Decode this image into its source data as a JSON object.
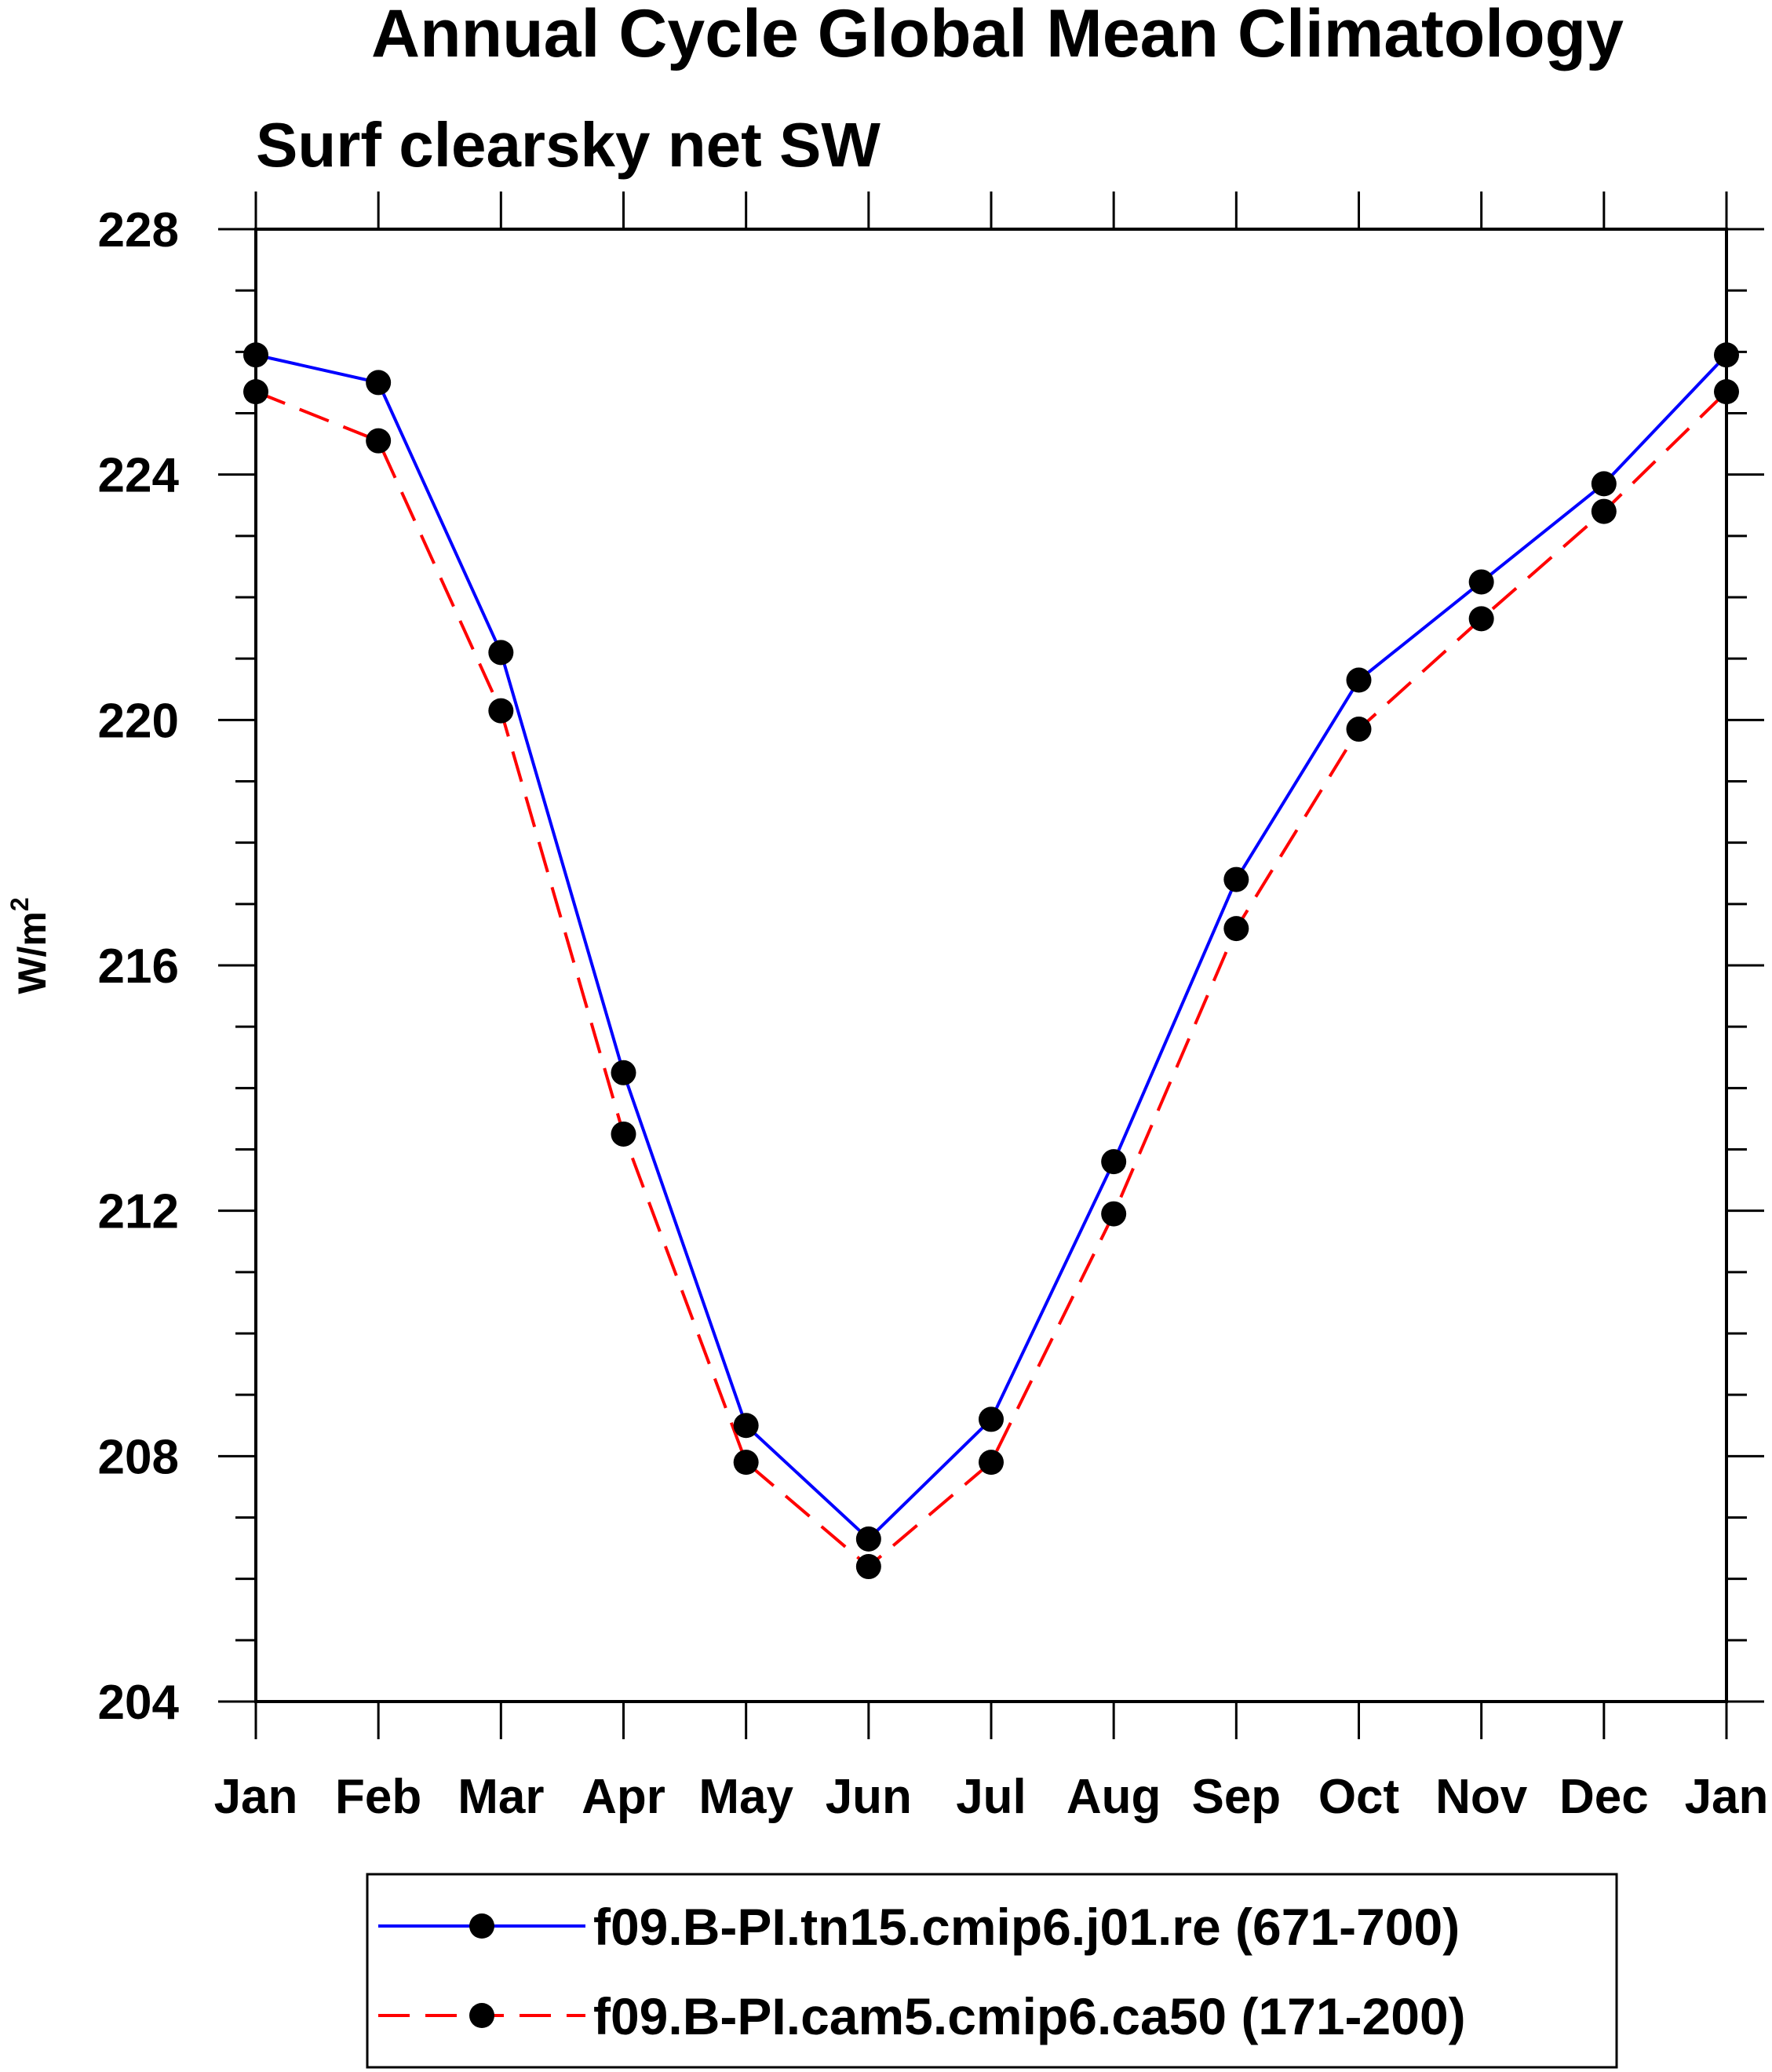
{
  "chart_data": {
    "type": "line",
    "title": "Annual Cycle Global Mean Climatology",
    "subtitle": "Surf clearsky net SW",
    "ylabel": "W/m",
    "ylabel_superscript": "2",
    "categories": [
      "Jan",
      "Feb",
      "Mar",
      "Apr",
      "May",
      "Jun",
      "Jul",
      "Aug",
      "Sep",
      "Oct",
      "Nov",
      "Dec",
      "Jan"
    ],
    "ylim": [
      204,
      228
    ],
    "yticks": [
      204,
      208,
      212,
      216,
      220,
      224,
      228
    ],
    "y_minor_step": 1,
    "grid": false,
    "legend_position": "bottom",
    "series": [
      {
        "name": "f09.B-PI.tn15.cmip6.j01.re (671-700)",
        "color": "#0000ff",
        "dash": "solid",
        "marker": "filled-circle",
        "values": [
          225.95,
          225.5,
          221.1,
          214.25,
          208.5,
          206.65,
          208.6,
          212.8,
          217.4,
          220.65,
          222.25,
          223.85,
          225.95
        ]
      },
      {
        "name": "f09.B-PI.cam5.cmip6.ca50 (171-200)",
        "color": "#ff0000",
        "dash": "dashed",
        "marker": "filled-circle",
        "values": [
          225.35,
          224.55,
          220.15,
          213.25,
          207.9,
          206.2,
          207.9,
          211.95,
          216.6,
          219.85,
          221.65,
          223.4,
          225.35
        ]
      }
    ]
  }
}
